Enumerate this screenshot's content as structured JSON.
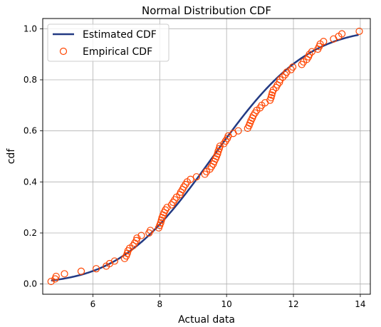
{
  "chart_data": {
    "type": "scatter",
    "title": "Normal Distribution CDF",
    "xlabel": "Actual data",
    "ylabel": "cdf",
    "xlim": [
      4.5,
      14.3
    ],
    "ylim": [
      -0.04,
      1.04
    ],
    "xticks": [
      6,
      8,
      10,
      12,
      14
    ],
    "yticks": [
      0.0,
      0.2,
      0.4,
      0.6,
      0.8,
      1.0
    ],
    "xtick_labels": [
      "6",
      "8",
      "10",
      "12",
      "14"
    ],
    "ytick_labels": [
      "0.0",
      "0.2",
      "0.4",
      "0.6",
      "0.8",
      "1.0"
    ],
    "grid": true,
    "legend_position": "top-left",
    "series": [
      {
        "name": "Estimated CDF",
        "kind": "line",
        "color": "#233a83",
        "mean": 9.6,
        "std": 2.2,
        "x_range": [
          4.75,
          13.95
        ]
      },
      {
        "name": "Empirical CDF",
        "kind": "scatter",
        "color": "#ff4500",
        "points": [
          [
            4.75,
            0.01
          ],
          [
            4.87,
            0.02
          ],
          [
            4.9,
            0.03
          ],
          [
            5.15,
            0.04
          ],
          [
            5.65,
            0.05
          ],
          [
            6.1,
            0.06
          ],
          [
            6.4,
            0.07
          ],
          [
            6.5,
            0.08
          ],
          [
            6.65,
            0.09
          ],
          [
            6.95,
            0.1
          ],
          [
            7.0,
            0.11
          ],
          [
            7.03,
            0.12
          ],
          [
            7.05,
            0.13
          ],
          [
            7.1,
            0.14
          ],
          [
            7.2,
            0.15
          ],
          [
            7.25,
            0.16
          ],
          [
            7.3,
            0.17
          ],
          [
            7.32,
            0.18
          ],
          [
            7.45,
            0.19
          ],
          [
            7.68,
            0.2
          ],
          [
            7.72,
            0.21
          ],
          [
            7.97,
            0.22
          ],
          [
            8.0,
            0.23
          ],
          [
            8.03,
            0.24
          ],
          [
            8.05,
            0.25
          ],
          [
            8.07,
            0.26
          ],
          [
            8.1,
            0.27
          ],
          [
            8.13,
            0.28
          ],
          [
            8.17,
            0.29
          ],
          [
            8.22,
            0.3
          ],
          [
            8.35,
            0.31
          ],
          [
            8.4,
            0.32
          ],
          [
            8.45,
            0.33
          ],
          [
            8.5,
            0.34
          ],
          [
            8.6,
            0.35
          ],
          [
            8.63,
            0.36
          ],
          [
            8.68,
            0.37
          ],
          [
            8.72,
            0.38
          ],
          [
            8.77,
            0.39
          ],
          [
            8.82,
            0.4
          ],
          [
            8.92,
            0.41
          ],
          [
            9.1,
            0.42
          ],
          [
            9.35,
            0.43
          ],
          [
            9.4,
            0.44
          ],
          [
            9.5,
            0.45
          ],
          [
            9.55,
            0.46
          ],
          [
            9.6,
            0.47
          ],
          [
            9.63,
            0.48
          ],
          [
            9.67,
            0.49
          ],
          [
            9.7,
            0.5
          ],
          [
            9.73,
            0.51
          ],
          [
            9.75,
            0.52
          ],
          [
            9.78,
            0.53
          ],
          [
            9.8,
            0.54
          ],
          [
            9.92,
            0.55
          ],
          [
            9.97,
            0.56
          ],
          [
            10.02,
            0.57
          ],
          [
            10.05,
            0.58
          ],
          [
            10.2,
            0.59
          ],
          [
            10.35,
            0.6
          ],
          [
            10.63,
            0.61
          ],
          [
            10.67,
            0.62
          ],
          [
            10.7,
            0.63
          ],
          [
            10.73,
            0.64
          ],
          [
            10.77,
            0.65
          ],
          [
            10.8,
            0.66
          ],
          [
            10.85,
            0.67
          ],
          [
            10.9,
            0.68
          ],
          [
            11.0,
            0.69
          ],
          [
            11.05,
            0.7
          ],
          [
            11.15,
            0.71
          ],
          [
            11.3,
            0.72
          ],
          [
            11.33,
            0.73
          ],
          [
            11.35,
            0.74
          ],
          [
            11.37,
            0.75
          ],
          [
            11.4,
            0.76
          ],
          [
            11.48,
            0.77
          ],
          [
            11.52,
            0.78
          ],
          [
            11.58,
            0.79
          ],
          [
            11.6,
            0.8
          ],
          [
            11.68,
            0.81
          ],
          [
            11.75,
            0.82
          ],
          [
            11.8,
            0.83
          ],
          [
            11.93,
            0.84
          ],
          [
            11.98,
            0.85
          ],
          [
            12.25,
            0.86
          ],
          [
            12.3,
            0.87
          ],
          [
            12.4,
            0.88
          ],
          [
            12.45,
            0.89
          ],
          [
            12.48,
            0.9
          ],
          [
            12.55,
            0.91
          ],
          [
            12.73,
            0.92
          ],
          [
            12.77,
            0.93
          ],
          [
            12.8,
            0.94
          ],
          [
            12.9,
            0.95
          ],
          [
            13.2,
            0.96
          ],
          [
            13.35,
            0.97
          ],
          [
            13.45,
            0.98
          ],
          [
            13.97,
            0.99
          ]
        ]
      }
    ]
  }
}
